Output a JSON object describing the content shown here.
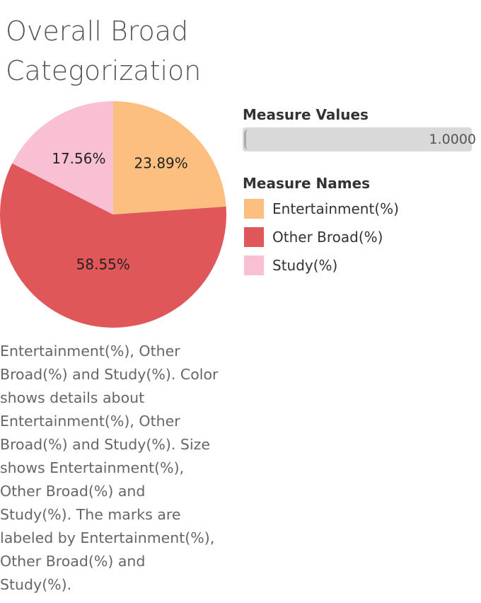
{
  "title": "Overall Broad Categorization",
  "chart_data": {
    "type": "pie",
    "categories": [
      "Entertainment(%)",
      "Other Broad(%)",
      "Study(%)"
    ],
    "values": [
      23.89,
      58.55,
      17.56
    ],
    "labels": [
      "23.89%",
      "58.55%",
      "17.56%"
    ],
    "colors": [
      "#fdbf7f",
      "#e0575a",
      "#f9bfd3"
    ]
  },
  "legend_values": {
    "title": "Measure Values",
    "value": "1.0000"
  },
  "legend_names": {
    "title": "Measure Names",
    "items": [
      "Entertainment(%)",
      "Other Broad(%)",
      "Study(%)"
    ]
  },
  "description": "Entertainment(%), Other Broad(%) and Study(%). Color shows details about Entertainment(%), Other Broad(%) and Study(%). Size shows Entertainment(%), Other Broad(%) and Study(%). The marks are labeled by Entertainment(%), Other Broad(%) and Study(%)."
}
